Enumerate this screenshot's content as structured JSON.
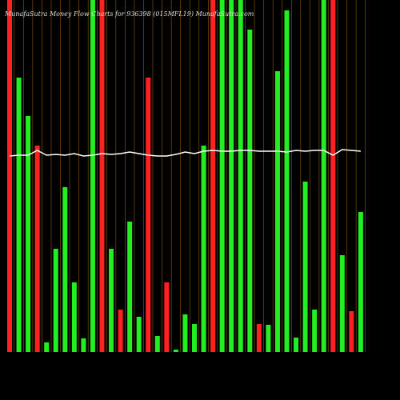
{
  "chart_data": {
    "type": "bar",
    "title": "MunafaSutra  Money Flow  Charts for 936398  (015MFL19) MunafaSutra.com",
    "ylim": [
      0,
      440
    ],
    "series": [
      {
        "values": [
          440,
          343,
          295,
          258,
          12,
          129,
          206,
          87,
          17,
          440,
          440,
          129,
          53,
          163,
          44,
          343,
          20,
          87,
          3,
          47,
          35,
          258,
          440,
          440,
          440,
          440,
          403,
          35,
          34,
          351,
          427,
          18,
          213,
          53,
          440,
          440,
          121,
          51,
          175
        ],
        "colors": [
          "#ff2020",
          "#22ee22",
          "#22ee22",
          "#ff2020",
          "#22ee22",
          "#22ee22",
          "#22ee22",
          "#22ee22",
          "#22ee22",
          "#22ee22",
          "#ff2020",
          "#22ee22",
          "#ff2020",
          "#22ee22",
          "#22ee22",
          "#ff2020",
          "#22ee22",
          "#ff2020",
          "#22ee22",
          "#22ee22",
          "#22ee22",
          "#22ee22",
          "#ff2020",
          "#22ee22",
          "#22ee22",
          "#22ee22",
          "#22ee22",
          "#ff2020",
          "#22ee22",
          "#22ee22",
          "#22ee22",
          "#22ee22",
          "#22ee22",
          "#22ee22",
          "#22ee22",
          "#ff2020",
          "#22ee22",
          "#ff2020",
          "#22ee22"
        ]
      },
      {
        "type": "line",
        "color": "#ffffff",
        "values": [
          245,
          246,
          246,
          252,
          246,
          247,
          246,
          248,
          245,
          246,
          248,
          247,
          248,
          250,
          248,
          246,
          245,
          245,
          247,
          250,
          248,
          251,
          252,
          251,
          251,
          252,
          252,
          251,
          251,
          251,
          250,
          252,
          251,
          252,
          252,
          246,
          253,
          252,
          251
        ]
      }
    ]
  }
}
